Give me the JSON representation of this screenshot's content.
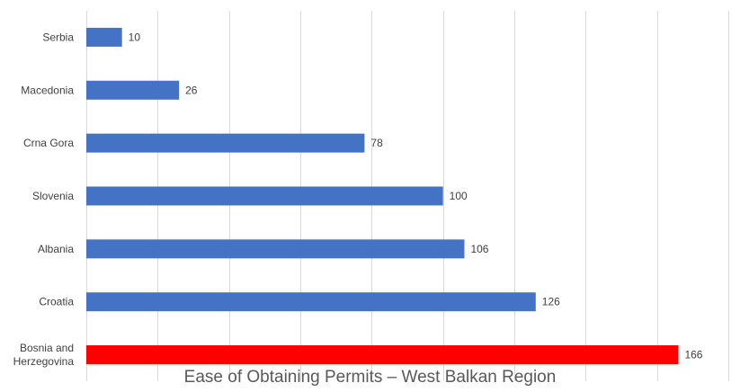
{
  "chart_data": {
    "type": "bar",
    "orientation": "horizontal",
    "title": "Ease of Obtaining Permits – West Balkan Region",
    "categories": [
      "Serbia",
      "Macedonia",
      "Crna Gora",
      "Slovenia",
      "Albania",
      "Croatia",
      "Bosnia and Herzegovina"
    ],
    "category_lines": [
      [
        "Serbia"
      ],
      [
        "Macedonia"
      ],
      [
        "Crna Gora"
      ],
      [
        "Slovenia"
      ],
      [
        "Albania"
      ],
      [
        "Croatia"
      ],
      [
        "Bosnia and",
        "Herzegovina"
      ]
    ],
    "values": [
      10,
      26,
      78,
      100,
      106,
      126,
      166
    ],
    "value_labels": [
      "10",
      "26",
      "78",
      "100",
      "106",
      "126",
      "166"
    ],
    "xlim": [
      0,
      180
    ],
    "grid": true,
    "bar_colors": [
      "#4472c4",
      "#4472c4",
      "#4472c4",
      "#4472c4",
      "#4472c4",
      "#4472c4",
      "#ff0000"
    ],
    "gridline_color": "#d9d9d9"
  }
}
